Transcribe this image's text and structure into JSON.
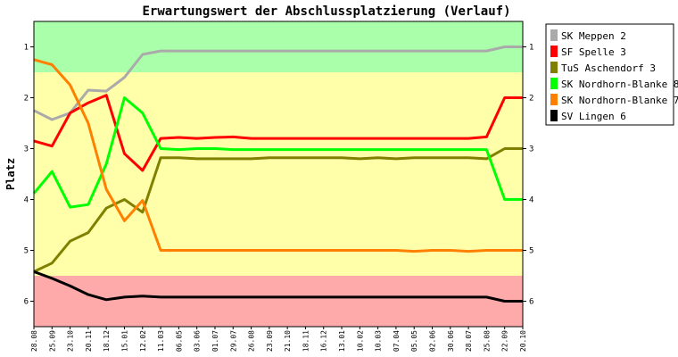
{
  "chart_data": {
    "type": "line",
    "title": "Erwartungswert der Abschlussplatzierung (Verlauf)",
    "xlabel": "",
    "ylabel": "Platz",
    "ylim": [
      6.5,
      0.5
    ],
    "y_ticks": [
      1,
      2,
      3,
      4,
      5,
      6
    ],
    "grid": false,
    "legend_position": "right",
    "zones": [
      {
        "from": 0.5,
        "to": 1.5,
        "color": "#aaffaa"
      },
      {
        "from": 1.5,
        "to": 5.5,
        "color": "#ffffaa"
      },
      {
        "from": 5.5,
        "to": 6.5,
        "color": "#ffaaaa"
      }
    ],
    "categories": [
      "28.08",
      "25.09",
      "23.10",
      "20.11",
      "18.12",
      "15.01",
      "12.02",
      "11.03",
      "06.05",
      "03.06",
      "01.07",
      "29.07",
      "26.08",
      "23.09",
      "21.10",
      "18.11",
      "16.12",
      "13.01",
      "10.02",
      "10.03",
      "07.04",
      "05.05",
      "02.06",
      "30.06",
      "28.07",
      "25.08",
      "22.09",
      "20.10"
    ],
    "x_index": [
      0,
      1,
      2,
      3,
      4,
      5,
      6,
      7,
      8,
      9,
      10,
      11,
      12,
      13,
      14,
      15,
      16,
      17,
      18,
      19,
      20,
      21,
      22,
      23,
      24,
      25,
      26,
      27
    ],
    "series": [
      {
        "name": "SK Meppen 2",
        "color": "#aaaaaa",
        "values": [
          2.25,
          2.43,
          2.3,
          1.85,
          1.87,
          1.6,
          1.15,
          1.08,
          1.08,
          1.08,
          1.08,
          1.08,
          1.08,
          1.08,
          1.08,
          1.08,
          1.08,
          1.08,
          1.08,
          1.08,
          1.08,
          1.08,
          1.08,
          1.08,
          1.08,
          1.08,
          1.0,
          1.0
        ]
      },
      {
        "name": "SF Spelle 3",
        "color": "#ff0000",
        "values": [
          2.85,
          2.95,
          2.3,
          2.1,
          1.95,
          3.1,
          3.43,
          2.8,
          2.78,
          2.8,
          2.78,
          2.77,
          2.8,
          2.8,
          2.8,
          2.8,
          2.8,
          2.8,
          2.8,
          2.8,
          2.8,
          2.8,
          2.8,
          2.8,
          2.8,
          2.77,
          2.0,
          2.0
        ]
      },
      {
        "name": "TuS Aschendorf 3",
        "color": "#808000",
        "values": [
          5.42,
          5.25,
          4.82,
          4.65,
          4.17,
          4.0,
          4.25,
          3.18,
          3.18,
          3.2,
          3.2,
          3.2,
          3.2,
          3.18,
          3.18,
          3.18,
          3.18,
          3.18,
          3.2,
          3.18,
          3.2,
          3.18,
          3.18,
          3.18,
          3.18,
          3.2,
          3.0,
          3.0
        ]
      },
      {
        "name": "SK Nordhorn-Blanke 8",
        "color": "#00ff00",
        "values": [
          3.88,
          3.45,
          4.15,
          4.1,
          3.3,
          2.0,
          2.3,
          3.0,
          3.02,
          3.0,
          3.0,
          3.02,
          3.02,
          3.02,
          3.02,
          3.02,
          3.02,
          3.02,
          3.02,
          3.02,
          3.02,
          3.02,
          3.02,
          3.02,
          3.02,
          3.02,
          4.0,
          4.0
        ]
      },
      {
        "name": "SK Nordhorn-Blanke 7",
        "color": "#ff8000",
        "values": [
          1.25,
          1.35,
          1.75,
          2.5,
          3.8,
          4.42,
          4.02,
          5.0,
          5.0,
          5.0,
          5.0,
          5.0,
          5.0,
          5.0,
          5.0,
          5.0,
          5.0,
          5.0,
          5.0,
          5.0,
          5.0,
          5.02,
          5.0,
          5.0,
          5.02,
          5.0,
          5.0,
          5.0
        ]
      },
      {
        "name": "SV Lingen 6",
        "color": "#000000",
        "values": [
          5.42,
          5.55,
          5.7,
          5.87,
          5.97,
          5.92,
          5.9,
          5.92,
          5.92,
          5.92,
          5.92,
          5.92,
          5.92,
          5.92,
          5.92,
          5.92,
          5.92,
          5.92,
          5.92,
          5.92,
          5.92,
          5.92,
          5.92,
          5.92,
          5.92,
          5.92,
          6.0,
          6.0
        ]
      }
    ]
  }
}
